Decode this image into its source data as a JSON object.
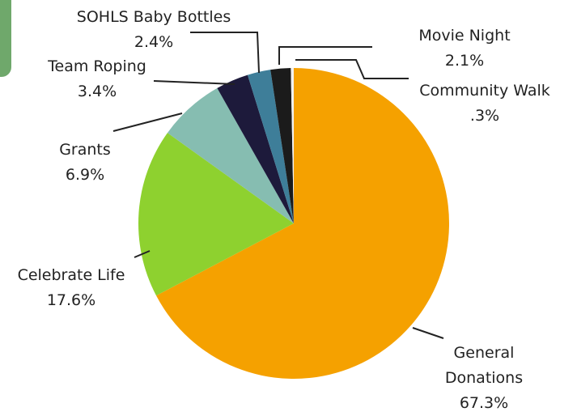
{
  "chart_data": {
    "type": "pie",
    "categories": [
      "General Donations",
      "Celebrate Life",
      "Grants",
      "Team Roping",
      "SOHLS Baby Bottles",
      "Movie Night",
      "Community Walk"
    ],
    "values": [
      67.3,
      17.6,
      6.9,
      3.4,
      2.4,
      2.1,
      0.3
    ],
    "value_labels": [
      "67.3%",
      "17.6%",
      "6.9%",
      "3.4%",
      "2.4%",
      "2.1%",
      ".3%"
    ],
    "colors": [
      "#f5a100",
      "#8ed12f",
      "#86bdb1",
      "#1d1a3b",
      "#3e7e99",
      "#1b1b1b",
      "#f2f2f2"
    ]
  }
}
